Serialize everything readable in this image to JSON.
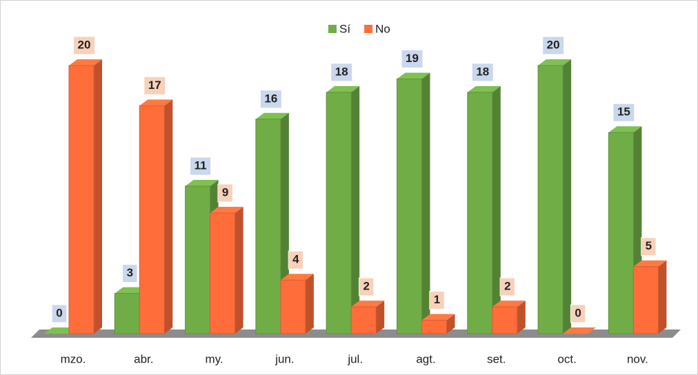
{
  "chart_data": {
    "type": "bar3d",
    "categories": [
      "mzo.",
      "abr.",
      "my.",
      "jun.",
      "jul.",
      "agt.",
      "set.",
      "oct.",
      "nov."
    ],
    "series": [
      {
        "name": "Sí",
        "color": "#70ad47",
        "values": [
          0,
          3,
          11,
          16,
          18,
          19,
          18,
          20,
          15
        ]
      },
      {
        "name": "No",
        "color": "#ff6d3a",
        "values": [
          20,
          17,
          9,
          4,
          2,
          1,
          2,
          0,
          5
        ]
      }
    ],
    "legend": "top"
  }
}
